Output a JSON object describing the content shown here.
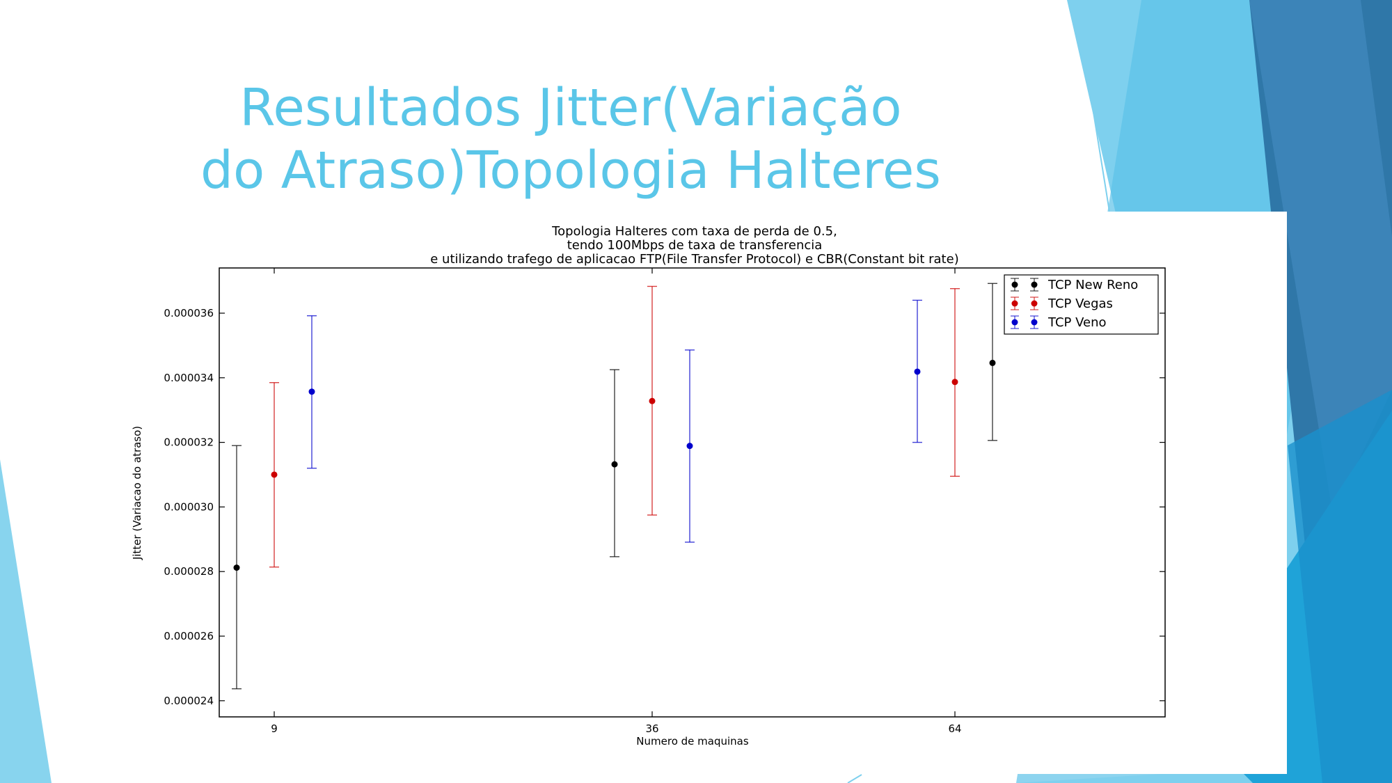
{
  "slide": {
    "title_line1": "Resultados Jitter(Variação",
    "title_line2": "do Atraso)Topologia Halteres",
    "title_color": "#5ac6e8"
  },
  "chart_data": {
    "type": "scatter",
    "title_lines": [
      "Topologia Halteres com taxa de perda de 0.5,",
      "tendo 100Mbps de taxa de transferencia",
      "e utilizando trafego de aplicacao FTP(File Transfer Protocol) e CBR(Constant bit rate)"
    ],
    "xlabel": "Numero de maquinas",
    "ylabel": "Jitter (Variacao do atraso)",
    "categories": [
      "9",
      "36",
      "64"
    ],
    "yticks": [
      "0.000024",
      "0.000026",
      "0.000028",
      "0.000030",
      "0.000032",
      "0.000034",
      "0.000036"
    ],
    "ylim": [
      2.35e-05,
      3.74e-05
    ],
    "legend_position": "top-right",
    "grid": false,
    "series": [
      {
        "name": "TCP New Reno",
        "color": "#000000",
        "points": [
          {
            "x": "9",
            "offset": -1,
            "y": 2.812e-05,
            "low": 2.437e-05,
            "high": 3.19e-05
          },
          {
            "x": "36",
            "offset": -1,
            "y": 3.132e-05,
            "low": 2.846e-05,
            "high": 3.425e-05
          },
          {
            "x": "64",
            "offset": 1,
            "y": 3.446e-05,
            "low": 3.206e-05,
            "high": 3.692e-05
          }
        ]
      },
      {
        "name": "TCP Vegas",
        "color": "#cc0000",
        "points": [
          {
            "x": "9",
            "offset": 0,
            "y": 3.1e-05,
            "low": 2.814e-05,
            "high": 3.385e-05
          },
          {
            "x": "36",
            "offset": 0,
            "y": 3.328e-05,
            "low": 2.975e-05,
            "high": 3.683e-05
          },
          {
            "x": "64",
            "offset": 0,
            "y": 3.387e-05,
            "low": 3.095e-05,
            "high": 3.676e-05
          }
        ]
      },
      {
        "name": "TCP Veno",
        "color": "#0000cc",
        "points": [
          {
            "x": "9",
            "offset": 1,
            "y": 3.357e-05,
            "low": 3.12e-05,
            "high": 3.592e-05
          },
          {
            "x": "36",
            "offset": 1,
            "y": 3.189e-05,
            "low": 2.891e-05,
            "high": 3.486e-05
          },
          {
            "x": "64",
            "offset": -1,
            "y": 3.419e-05,
            "low": 3.2e-05,
            "high": 3.64e-05
          }
        ]
      }
    ]
  }
}
